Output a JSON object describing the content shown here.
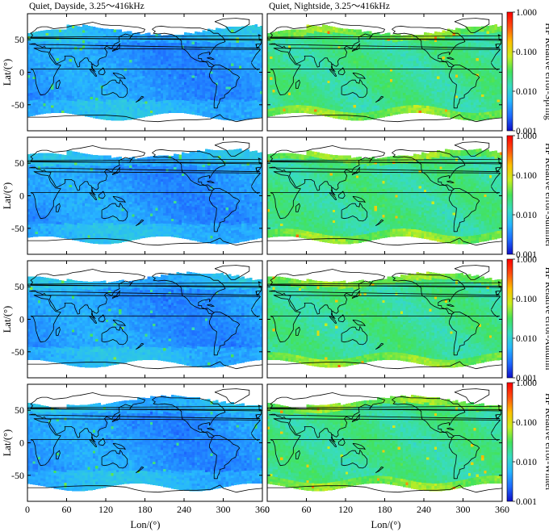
{
  "titles": {
    "left": "Quiet, Dayside, 3.25～416kHz",
    "right": "Quiet, Nightside, 3.25～416kHz"
  },
  "x_axis": {
    "label": "Lon/(°)",
    "ticks": [
      0,
      60,
      120,
      180,
      240,
      300,
      360
    ],
    "range": [
      0,
      360
    ]
  },
  "y_axis": {
    "label": "Lat/(°)",
    "ticks": [
      50,
      0,
      -50
    ],
    "range": [
      -90,
      90
    ]
  },
  "colorbar": {
    "scale": "log",
    "range": [
      0.001,
      1.0
    ],
    "ticks": [
      "1.000",
      "0.100",
      "0.010",
      "0.001"
    ],
    "colors": [
      "#1010c8",
      "#1e6bff",
      "#27b6ff",
      "#37dcc0",
      "#43e35a",
      "#c8ee20",
      "#ffc000",
      "#ff5010",
      "#ff0000"
    ]
  },
  "rows": [
    {
      "season_label": "HF  Relative error-Spring"
    },
    {
      "season_label": "HF  Relative error-Summer"
    },
    {
      "season_label": "HF  Relative error-Autumn"
    },
    {
      "season_label": "HF  Relative error-Winter"
    }
  ],
  "chart_data": {
    "type": "heatmap",
    "panels": [
      {
        "row": "Spring",
        "column": "Dayside",
        "typical_relative_error": 0.004,
        "coverage_lat": [
          -70,
          70
        ]
      },
      {
        "row": "Spring",
        "column": "Nightside",
        "typical_relative_error": 0.02,
        "coverage_lat": [
          -70,
          70
        ]
      },
      {
        "row": "Summer",
        "column": "Dayside",
        "typical_relative_error": 0.004,
        "coverage_lat": [
          -70,
          70
        ]
      },
      {
        "row": "Summer",
        "column": "Nightside",
        "typical_relative_error": 0.02,
        "coverage_lat": [
          -70,
          70
        ]
      },
      {
        "row": "Autumn",
        "column": "Dayside",
        "typical_relative_error": 0.004,
        "coverage_lat": [
          -70,
          70
        ]
      },
      {
        "row": "Autumn",
        "column": "Nightside",
        "typical_relative_error": 0.02,
        "coverage_lat": [
          -70,
          70
        ]
      },
      {
        "row": "Winter",
        "column": "Dayside",
        "typical_relative_error": 0.004,
        "coverage_lat": [
          -70,
          70
        ]
      },
      {
        "row": "Winter",
        "column": "Nightside",
        "typical_relative_error": 0.02,
        "coverage_lat": [
          -70,
          70
        ]
      }
    ]
  }
}
